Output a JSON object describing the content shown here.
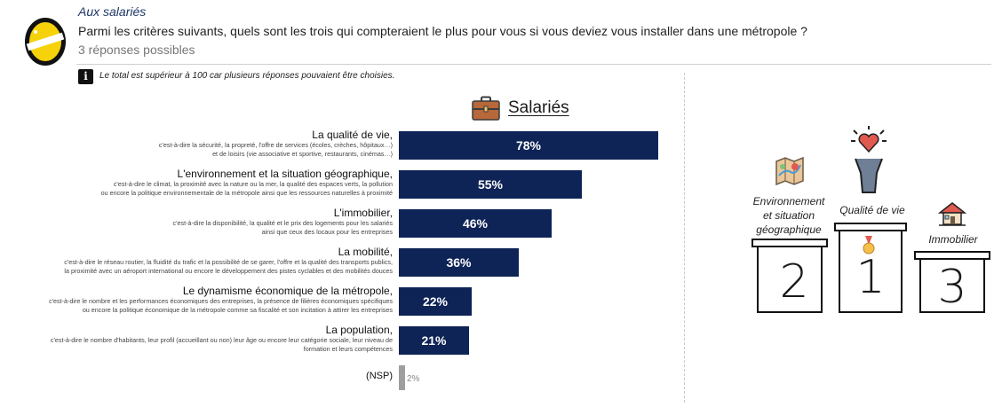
{
  "header": {
    "audience": "Aux salariés",
    "question": "Parmi les critères suivants, quels sont les trois qui compteraient le plus pour vous si vous deviez vous installer dans une métropole ?",
    "responses_note": "3 réponses possibles"
  },
  "note": {
    "icon": "info-icon",
    "text": "Le total est supérieur à 100 car plusieurs réponses pouvaient être choisies."
  },
  "chart_data": {
    "type": "bar",
    "orientation": "horizontal",
    "title": "Salariés",
    "title_icon": "briefcase-icon",
    "bar_color": "#0e2356",
    "nsp_color": "#9e9e9e",
    "xlim": [
      0,
      100
    ],
    "categories": [
      {
        "label": "La qualité de vie,",
        "desc": [
          "c'est-à-dire la sécurité, la propreté, l'offre de services (écoles, crèches, hôpitaux…)",
          "et de loisirs (vie associative et sportive, restaurants, cinémas…)"
        ],
        "value": 78,
        "value_label": "78%"
      },
      {
        "label": "L'environnement et la situation géographique,",
        "desc": [
          "c'est-à-dire le climat, la proximité avec la nature ou la mer, la qualité des espaces verts, la pollution",
          "ou encore la politique environnementale de la métropole ainsi que les ressources naturelles à proximité"
        ],
        "value": 55,
        "value_label": "55%"
      },
      {
        "label": "L'immobilier,",
        "desc": [
          "c'est-à-dire la disponibilité, la qualité et le prix des logements pour les salariés",
          "ainsi que ceux des locaux pour les entreprises"
        ],
        "value": 46,
        "value_label": "46%"
      },
      {
        "label": "La mobilité,",
        "desc": [
          "c'est-à-dire le réseau routier, la fluidité du trafic et la possibilité de se garer, l'offre et la qualité des transports publics,",
          "la proximité avec un aéroport international ou encore le développement des pistes cyclables et des mobilités douces"
        ],
        "value": 36,
        "value_label": "36%"
      },
      {
        "label": "Le dynamisme économique de la métropole,",
        "desc": [
          "c'est-à-dire le nombre et les performances économiques des entreprises, la présence de filières économiques spécifiques",
          "ou encore la politique économique de la métropole comme sa fiscalité et son incitation à attirer les entreprises"
        ],
        "value": 22,
        "value_label": "22%"
      },
      {
        "label": "La population,",
        "desc": [
          "c'est-à-dire le nombre d'habitants, leur profil (accueillant ou non) leur âge ou encore leur catégorie sociale, leur niveau de",
          "formation et leurs compétences"
        ],
        "value": 21,
        "value_label": "21%"
      }
    ],
    "nsp": {
      "label": "(NSP)",
      "value": 2,
      "value_label": "2%"
    }
  },
  "podium": {
    "first": {
      "rank": "1",
      "caption": "Qualité de vie",
      "icon": "person-heart-icon"
    },
    "second": {
      "rank": "2",
      "caption": [
        "Environnement",
        "et situation",
        "géographique"
      ],
      "icon": "map-icon"
    },
    "third": {
      "rank": "3",
      "caption": "Immobilier",
      "icon": "house-icon"
    },
    "medal_icon": "medal-icon"
  }
}
